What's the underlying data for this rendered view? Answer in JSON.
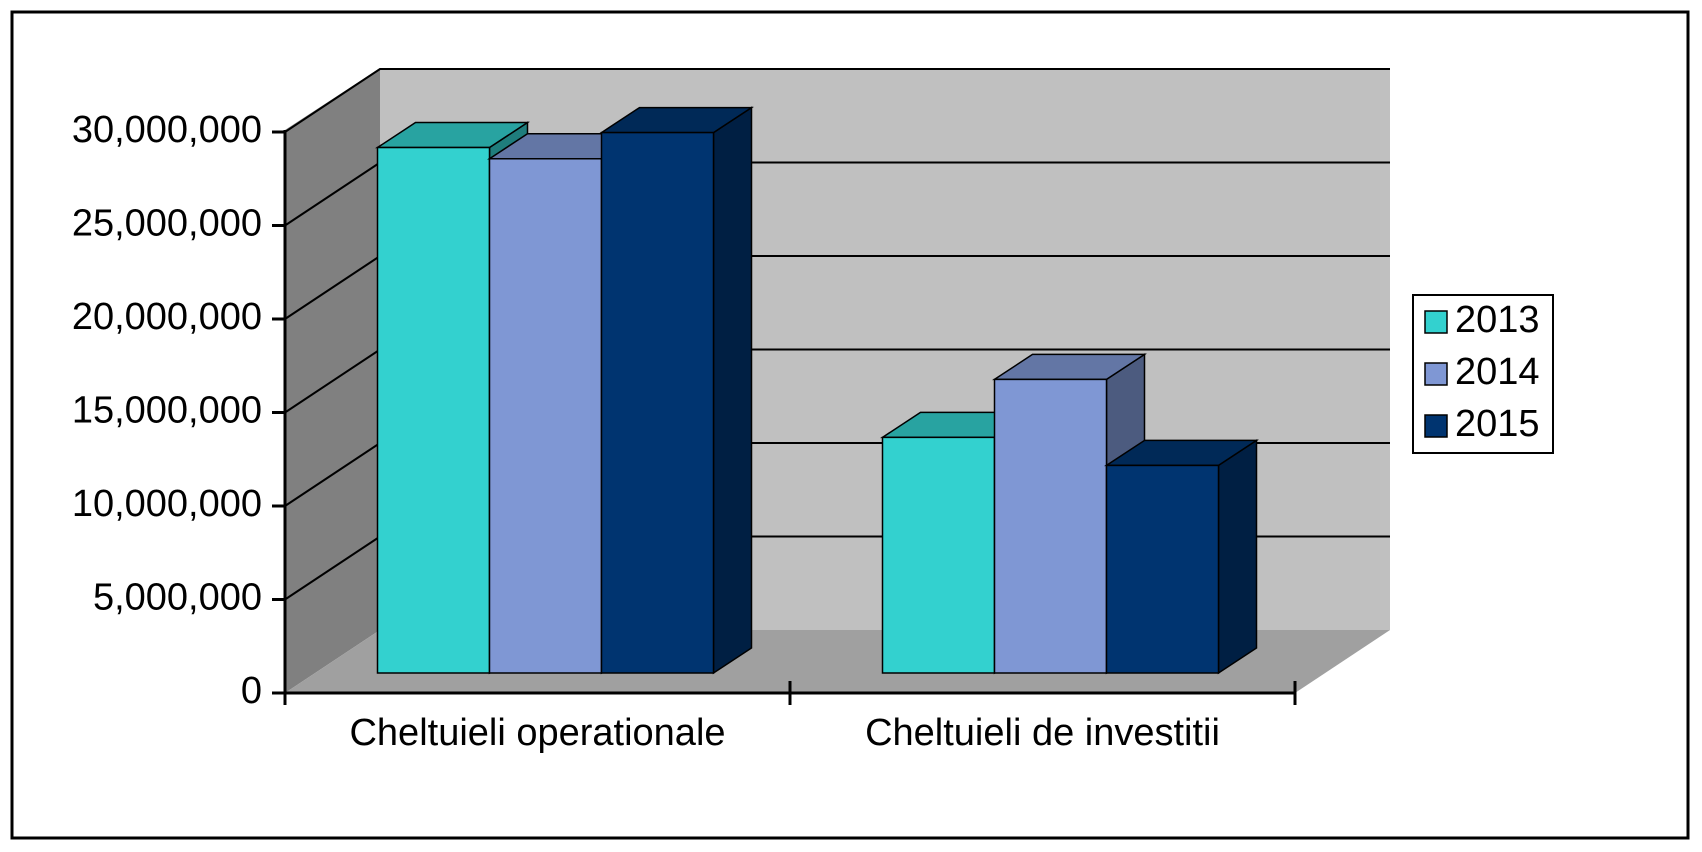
{
  "chart_data": {
    "type": "bar3d",
    "categories": [
      "Cheltuieli operationale",
      "Cheltuieli de investitii"
    ],
    "series": [
      {
        "name": "2013",
        "color": "#33d1cf",
        "values": [
          28100000,
          12600000
        ]
      },
      {
        "name": "2014",
        "color": "#7f97d4",
        "values": [
          27500000,
          15700000
        ]
      },
      {
        "name": "2015",
        "color": "#003470",
        "values": [
          28900000,
          11100000
        ]
      }
    ],
    "ylim": [
      0,
      30000000
    ],
    "yticks": [
      0,
      {
        "value": 5000000,
        "label": "5,000,000"
      },
      {
        "value": 10000000,
        "label": "10,000,000"
      },
      {
        "value": 15000000,
        "label": "15,000,000"
      },
      {
        "value": 20000000,
        "label": "20,000,000"
      },
      {
        "value": 25000000,
        "label": "25,000,000"
      },
      {
        "value": 30000000,
        "label": "30,000,000"
      }
    ],
    "grid": true,
    "legend": "right"
  }
}
